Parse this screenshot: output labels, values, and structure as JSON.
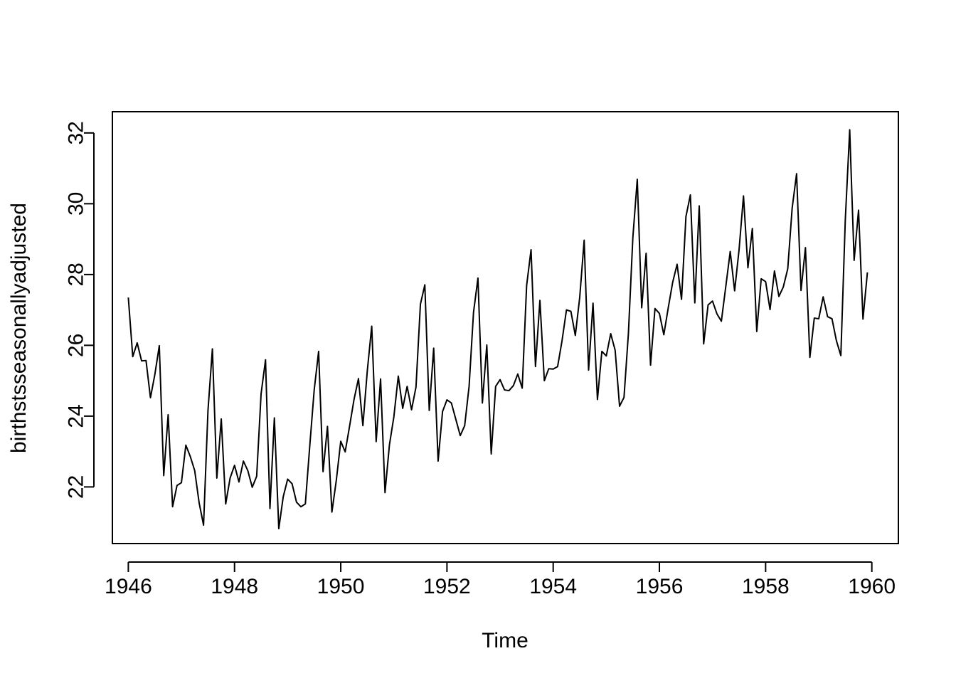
{
  "chart_data": {
    "type": "line",
    "title": "",
    "xlabel": "Time",
    "ylabel": "birthstsseasonallyadjusted",
    "xlim": [
      1945.7,
      1960.5
    ],
    "ylim": [
      20.4,
      32.6
    ],
    "x_ticks": [
      1946,
      1948,
      1950,
      1952,
      1954,
      1956,
      1958,
      1960
    ],
    "y_ticks": [
      22,
      24,
      26,
      28,
      30,
      32
    ],
    "x_tick_labels": [
      "1946",
      "1948",
      "1950",
      "1952",
      "1954",
      "1956",
      "1958",
      "1960"
    ],
    "y_tick_labels": [
      "22",
      "24",
      "26",
      "28",
      "30",
      "32"
    ],
    "grid": false,
    "legend": "none",
    "line_color": "#000000",
    "series": [
      {
        "start": 1946.0,
        "frequency": 12,
        "values": [
          27.35,
          25.68,
          26.07,
          25.56,
          25.57,
          24.52,
          25.18,
          25.99,
          22.32,
          24.04,
          21.44,
          22.04,
          22.12,
          23.18,
          22.86,
          22.46,
          21.55,
          20.92,
          24.16,
          25.9,
          22.25,
          23.92,
          21.52,
          22.25,
          22.61,
          22.14,
          22.73,
          22.46,
          21.99,
          22.3,
          24.63,
          25.59,
          21.39,
          23.95,
          20.82,
          21.72,
          22.22,
          22.09,
          21.57,
          21.44,
          21.52,
          23.16,
          24.74,
          25.83,
          22.43,
          23.71,
          21.29,
          22.19,
          23.29,
          22.99,
          23.72,
          24.47,
          25.06,
          23.73,
          25.28,
          26.54,
          23.28,
          25.05,
          21.84,
          23.19,
          23.98,
          25.13,
          24.22,
          24.84,
          24.18,
          24.82,
          27.16,
          27.71,
          24.16,
          25.92,
          22.73,
          24.13,
          24.46,
          24.37,
          23.91,
          23.45,
          23.73,
          24.84,
          26.93,
          27.9,
          24.37,
          26.01,
          22.93,
          24.84,
          25.03,
          24.74,
          24.72,
          24.86,
          25.19,
          24.79,
          27.69,
          28.7,
          25.4,
          27.27,
          25.0,
          25.34,
          25.33,
          25.4,
          26.13,
          27.0,
          26.96,
          26.28,
          27.36,
          28.97,
          25.3,
          27.19,
          24.47,
          25.83,
          25.7,
          26.33,
          25.86,
          24.28,
          24.53,
          26.34,
          29.04,
          30.69,
          27.06,
          28.6,
          25.44,
          27.04,
          26.9,
          26.3,
          27.06,
          27.78,
          28.29,
          27.3,
          29.64,
          30.25,
          27.2,
          29.94,
          26.04,
          27.14,
          27.25,
          26.89,
          26.68,
          27.66,
          28.65,
          27.54,
          28.7,
          30.22,
          28.19,
          29.3,
          26.39,
          27.88,
          27.8,
          27.01,
          28.1,
          27.38,
          27.65,
          28.16,
          29.88,
          30.85,
          27.55,
          28.76,
          25.66,
          26.77,
          26.75,
          27.37,
          26.81,
          26.75,
          26.13,
          25.71,
          29.53,
          32.09,
          28.4,
          29.82,
          26.74,
          28.06
        ]
      }
    ]
  }
}
